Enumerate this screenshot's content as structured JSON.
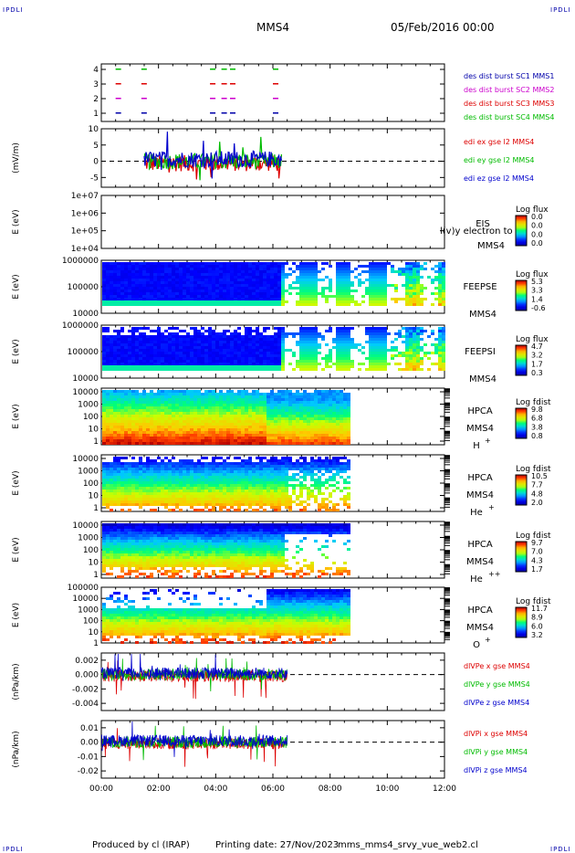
{
  "header": {
    "corner_label": "IPDLI",
    "title": "MMS4",
    "date": "05/Feb/2016 00:00"
  },
  "footer": {
    "produced_by": "Produced by cl (IRAP)",
    "printing_date": "Printing date: 27/Nov/2023",
    "filename": "mms_mms4_srvy_vue_web2.cl"
  },
  "colors": {
    "mms1": "#0000aa",
    "mms2": "#cc00cc",
    "mms3": "#dd0000",
    "mms4": "#00bb00",
    "x": "#dd0000",
    "y": "#00bb00",
    "z": "#0000cc"
  },
  "chart_data": {
    "type": "multi-panel",
    "x_axis": {
      "range": [
        "00:00",
        "12:00"
      ],
      "ticks": [
        "00:00",
        "02:00",
        "04:00",
        "06:00",
        "08:00",
        "10:00",
        "12:00"
      ]
    },
    "panels": [
      {
        "id": "burst",
        "type": "event",
        "ylabel": "",
        "yticks": [
          "4",
          "3",
          "2",
          "1"
        ],
        "legend": [
          "des dist burst SC1 MMS1",
          "des dist burst SC2 MMS2",
          "des dist burst SC3 MMS3",
          "des dist burst SC4 MMS4"
        ],
        "bursts_hours": [
          0.5,
          1.4,
          3.8,
          4.2,
          4.5,
          6.0
        ]
      },
      {
        "id": "edi",
        "type": "line",
        "ylabel": "(mV/m)",
        "yticks": [
          "10",
          "5",
          "0",
          "-5"
        ],
        "ylim": [
          -8,
          10
        ],
        "legend": [
          "edi ex gse l2 MMS4",
          "edi ey gse l2 MMS4",
          "edi ez gse l2 MMS4"
        ],
        "data_range_hours": [
          1.5,
          6.3
        ]
      },
      {
        "id": "eis",
        "type": "heatmap",
        "ylabel": "E (eV)",
        "yticks": [
          "1e+07",
          "1e+06",
          "1e+05",
          "1e+04"
        ],
        "instrument": "EIS",
        "sc": "MMS4",
        "overlay_note": "l(v)y electron to",
        "cbar_title": "Log flux",
        "cbar_ticks": [
          "0.0",
          "0.0",
          "0.0",
          "0.0"
        ]
      },
      {
        "id": "feepse",
        "type": "heatmap",
        "ylabel": "E (eV)",
        "yticks": [
          "1000000",
          "100000",
          "10000"
        ],
        "instrument": "FEEPSE",
        "sc": "MMS4",
        "cbar_title": "Log flux",
        "cbar_ticks": [
          "5.3",
          "3.3",
          "1.4",
          "-0.6"
        ]
      },
      {
        "id": "feepsi",
        "type": "heatmap",
        "ylabel": "E (eV)",
        "yticks": [
          "1000000",
          "100000",
          "10000"
        ],
        "instrument": "FEEPSI",
        "sc": "MMS4",
        "cbar_title": "Log flux",
        "cbar_ticks": [
          "4.7",
          "3.2",
          "1.7",
          "0.3"
        ]
      },
      {
        "id": "hpca_h",
        "type": "heatmap",
        "ylabel": "E (eV)",
        "yticks": [
          "10000",
          "1000",
          "100",
          "10",
          "1"
        ],
        "instrument": "HPCA",
        "sc": "MMS4",
        "species": "H",
        "charge": "+",
        "cbar_title": "Log fdist",
        "cbar_ticks": [
          "9.8",
          "6.8",
          "3.8",
          "0.8"
        ]
      },
      {
        "id": "hpca_he",
        "type": "heatmap",
        "ylabel": "E (eV)",
        "yticks": [
          "10000",
          "1000",
          "100",
          "10",
          "1"
        ],
        "instrument": "HPCA",
        "sc": "MMS4",
        "species": "He",
        "charge": "+",
        "cbar_title": "Log fdist",
        "cbar_ticks": [
          "10.5",
          "7.7",
          "4.8",
          "2.0"
        ]
      },
      {
        "id": "hpca_hepp",
        "type": "heatmap",
        "ylabel": "E (eV)",
        "yticks": [
          "10000",
          "1000",
          "100",
          "10",
          "1"
        ],
        "instrument": "HPCA",
        "sc": "MMS4",
        "species": "He",
        "charge": "++",
        "cbar_title": "Log fdist",
        "cbar_ticks": [
          "9.7",
          "7.0",
          "4.3",
          "1.7"
        ]
      },
      {
        "id": "hpca_o",
        "type": "heatmap",
        "ylabel": "E (eV)",
        "yticks": [
          "100000",
          "10000",
          "1000",
          "100",
          "10",
          "1"
        ],
        "instrument": "HPCA",
        "sc": "MMS4",
        "species": "O",
        "charge": "+",
        "cbar_title": "Log fdist",
        "cbar_ticks": [
          "11.7",
          "8.9",
          "6.0",
          "3.2"
        ]
      },
      {
        "id": "dpe",
        "type": "line",
        "ylabel": "(nPa/km)",
        "yticks": [
          "0.002",
          "0.000",
          "-0.002",
          "-0.004"
        ],
        "ylim": [
          -0.005,
          0.003
        ],
        "legend": [
          "dlVPe x gse MMS4",
          "dlVPe y gse MMS4",
          "dlVPe z gse MMS4"
        ],
        "data_range_hours": [
          0.0,
          6.5
        ]
      },
      {
        "id": "dpi",
        "type": "line",
        "ylabel": "(nPa/km)",
        "yticks": [
          "0.01",
          "0.00",
          "-0.01",
          "-0.02"
        ],
        "ylim": [
          -0.025,
          0.015
        ],
        "legend": [
          "dlVPi x gse MMS4",
          "dlVPi y gse MMS4",
          "dlVPi z gse MMS4"
        ],
        "data_range_hours": [
          0.0,
          6.5
        ]
      }
    ]
  }
}
